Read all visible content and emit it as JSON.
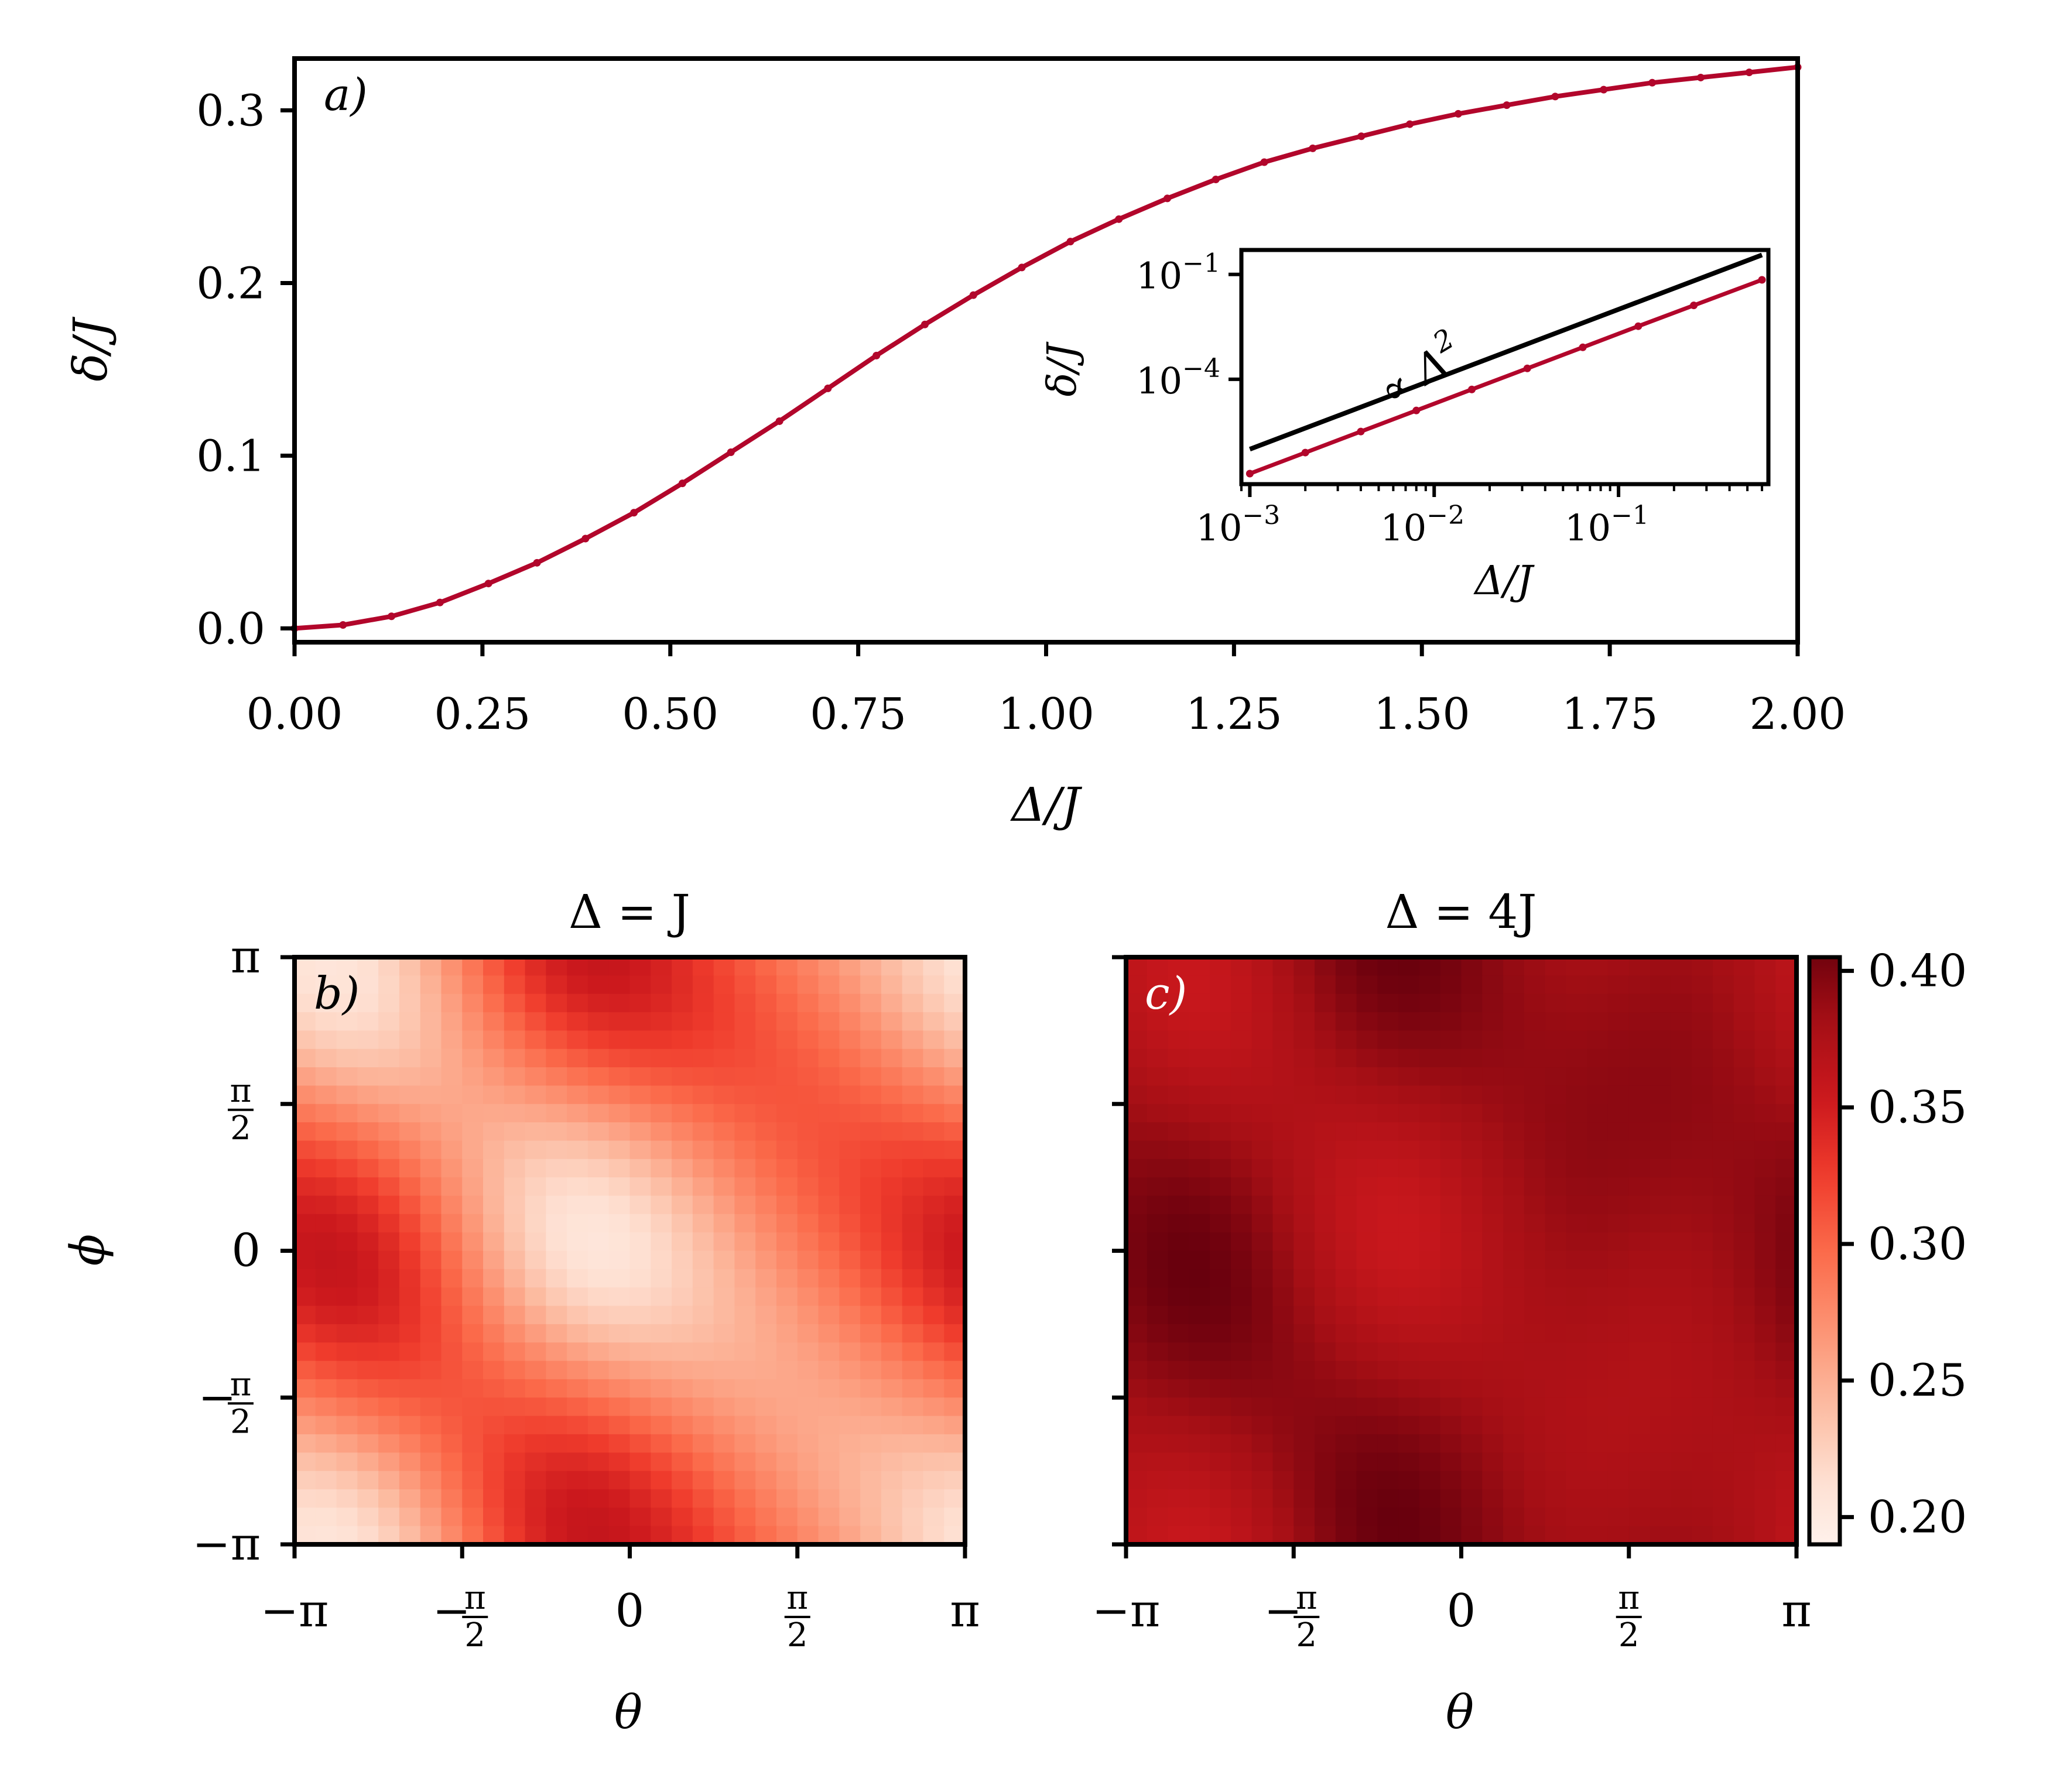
{
  "colors": {
    "line": "#b2062b",
    "reference_line": "#000000",
    "label_light": "#ffffff",
    "colormap": [
      "#fff5f0",
      "#fee0d2",
      "#fcbba1",
      "#fc9272",
      "#fb6a4a",
      "#ef3b2c",
      "#cb181d",
      "#a50f15",
      "#67000d"
    ]
  },
  "chart_data": [
    {
      "id": "a",
      "panel_label": "a)",
      "type": "line",
      "xlabel": "Δ/J",
      "ylabel": "δ/J",
      "xlim": [
        0,
        2
      ],
      "ylim": [
        -0.008,
        0.33
      ],
      "xticks": [
        "0.00",
        "0.25",
        "0.50",
        "0.75",
        "1.00",
        "1.25",
        "1.50",
        "1.75",
        "2.00"
      ],
      "yticks": [
        "0.0",
        "0.1",
        "0.2",
        "0.3"
      ],
      "series": [
        {
          "x": [
            0.0,
            0.0645,
            0.129,
            0.1935,
            0.258,
            0.3226,
            0.3871,
            0.4516,
            0.5161,
            0.5806,
            0.6452,
            0.7097,
            0.7742,
            0.8387,
            0.9032,
            0.9677,
            1.0323,
            1.0968,
            1.1613,
            1.2258,
            1.2903,
            1.3548,
            1.4194,
            1.4839,
            1.5484,
            1.6129,
            1.6774,
            1.7419,
            1.8065,
            1.871,
            1.9355,
            2.0
          ],
          "y": [
            0.0,
            0.002,
            0.007,
            0.015,
            0.026,
            0.038,
            0.052,
            0.067,
            0.084,
            0.102,
            0.12,
            0.139,
            0.158,
            0.176,
            0.193,
            0.209,
            0.224,
            0.237,
            0.249,
            0.26,
            0.27,
            0.278,
            0.285,
            0.292,
            0.298,
            0.303,
            0.308,
            0.312,
            0.316,
            0.319,
            0.322,
            0.325
          ]
        }
      ],
      "inset": {
        "type": "line",
        "xscale": "log",
        "yscale": "log",
        "xlabel": "Δ/J",
        "ylabel": "δ/J",
        "xlim": [
          0.0009,
          0.65
        ],
        "ylim": [
          1e-07,
          0.5
        ],
        "xticks": [
          {
            "value": 0.001,
            "base": "10",
            "exp": "−3"
          },
          {
            "value": 0.01,
            "base": "10",
            "exp": "−2"
          },
          {
            "value": 0.1,
            "base": "10",
            "exp": "−1"
          }
        ],
        "yticks": [
          {
            "value": 0.1,
            "base": "10",
            "exp": "−1"
          },
          {
            "value": 0.0001,
            "base": "10",
            "exp": "−4"
          }
        ],
        "annotation": "∝ Δ",
        "annotation_exp": "2",
        "reference": {
          "x": [
            0.001,
            0.6
          ],
          "y": [
            1e-06,
            0.36
          ]
        },
        "series": [
          {
            "x": [
              0.001,
              0.002,
              0.004,
              0.008,
              0.016,
              0.032,
              0.064,
              0.128,
              0.256,
              0.6
            ],
            "y": [
              2e-07,
              8e-07,
              3.2e-06,
              1.28e-05,
              5.12e-05,
              0.000205,
              0.00082,
              0.0033,
              0.013,
              0.07
            ]
          }
        ]
      }
    },
    {
      "id": "b",
      "panel_label": "b)",
      "type": "heatmap",
      "title": "Δ = J",
      "xlabel": "θ",
      "ylabel": "ϕ",
      "xlim": [
        -3.1416,
        3.1416
      ],
      "ylim": [
        -3.1416,
        3.1416
      ],
      "grid_size": 32,
      "value_range": [
        0.185,
        0.41
      ],
      "pattern": {
        "base": 0.21,
        "a1": 0.1,
        "a2": 0.045,
        "min_cap": 0.19
      },
      "xticks": [
        {
          "value": -3.1416,
          "label": "−π"
        },
        {
          "value": -1.5708,
          "label": "−π/2"
        },
        {
          "value": 0,
          "label": "0"
        },
        {
          "value": 1.5708,
          "label": "π/2"
        },
        {
          "value": 3.1416,
          "label": "π"
        }
      ],
      "yticks": [
        {
          "value": 3.1416,
          "label": "π"
        },
        {
          "value": 1.5708,
          "label": "π/2"
        },
        {
          "value": 0,
          "label": "0"
        },
        {
          "value": -1.5708,
          "label": "−π/2"
        },
        {
          "value": -3.1416,
          "label": "−π"
        }
      ]
    },
    {
      "id": "c",
      "panel_label": "c)",
      "type": "heatmap",
      "title": "Δ = 4J",
      "xlabel": "θ",
      "ylabel": "",
      "xlim": [
        -3.1416,
        3.1416
      ],
      "ylim": [
        -3.1416,
        3.1416
      ],
      "grid_size": 32,
      "value_range": [
        0.185,
        0.41
      ],
      "pattern": {
        "base": 0.365,
        "a1": 0.028,
        "a2": 0.008,
        "min_cap": 0.34
      },
      "xticks": [
        {
          "value": -3.1416,
          "label": "−π"
        },
        {
          "value": -1.5708,
          "label": "−π/2"
        },
        {
          "value": 0,
          "label": "0"
        },
        {
          "value": 1.5708,
          "label": "π/2"
        },
        {
          "value": 3.1416,
          "label": "π"
        }
      ],
      "yticks": [
        {
          "value": 3.1416,
          "label": ""
        },
        {
          "value": 1.5708,
          "label": ""
        },
        {
          "value": 0,
          "label": ""
        },
        {
          "value": -1.5708,
          "label": ""
        },
        {
          "value": -3.1416,
          "label": ""
        }
      ]
    }
  ],
  "colorbar": {
    "range": [
      0.19,
      0.405
    ],
    "ticks": [
      0.2,
      0.25,
      0.3,
      0.35,
      0.4
    ],
    "tick_labels": [
      "0.20",
      "0.25",
      "0.30",
      "0.35",
      "0.40"
    ]
  }
}
